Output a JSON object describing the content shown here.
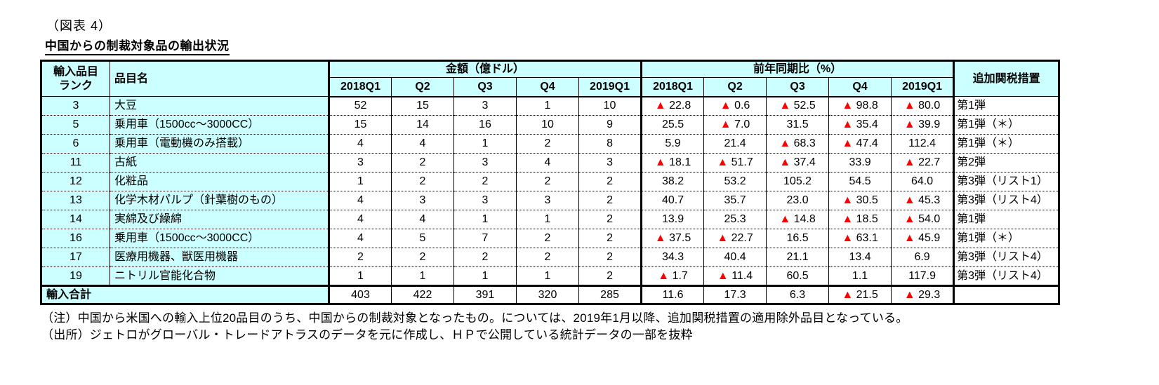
{
  "page": {
    "figure_label": "（図表 4）",
    "title": "中国からの制裁対象品の輸出状況",
    "notes": [
      "（注）中国から米国への輸入上位20品目のうち、中国からの制裁対象となったもの。については、2019年1月以降、追加関税措置の適用除外品目となっている。",
      "（出所）ジェトロがグローバル・トレードアトラスのデータを元に作成し、ＨＰで公開している統計データの一部を抜粋"
    ]
  },
  "colors": {
    "header_bg": "#ccffff",
    "negative_triangle": "#ff0000",
    "border": "#000000"
  },
  "table": {
    "headers": {
      "rank_line1": "輸入品目",
      "rank_line2": "ランク",
      "item_name": "品目名",
      "amount_group": "金額（億ドル）",
      "yoy_group": "前年同期比（%）",
      "tariff": "追加関税措置",
      "quarters": [
        "2018Q1",
        "Q2",
        "Q3",
        "Q4",
        "2019Q1"
      ]
    },
    "rows": [
      {
        "rank": "3",
        "name": "大豆",
        "amounts": [
          "52",
          "15",
          "3",
          "1",
          "10"
        ],
        "yoy": [
          "▲ 22.8",
          "▲ 0.6",
          "▲ 52.5",
          "▲ 98.8",
          "▲ 80.0"
        ],
        "tariff": "第1弾"
      },
      {
        "rank": "5",
        "name": "乗用車（1500cc～3000CC）",
        "amounts": [
          "15",
          "14",
          "16",
          "10",
          "9"
        ],
        "yoy": [
          "25.5",
          "▲ 7.0",
          "31.5",
          "▲ 35.4",
          "▲ 39.9"
        ],
        "tariff": "第1弾（＊）"
      },
      {
        "rank": "6",
        "name": "乗用車（電動機のみ搭載）",
        "amounts": [
          "4",
          "4",
          "1",
          "2",
          "8"
        ],
        "yoy": [
          "5.9",
          "21.4",
          "▲ 68.3",
          "▲ 47.4",
          "112.4"
        ],
        "tariff": "第1弾（＊）"
      },
      {
        "rank": "11",
        "name": "古紙",
        "amounts": [
          "3",
          "2",
          "3",
          "4",
          "3"
        ],
        "yoy": [
          "▲ 18.1",
          "▲ 51.7",
          "▲ 37.4",
          "33.9",
          "▲ 22.7"
        ],
        "tariff": "第2弾"
      },
      {
        "rank": "12",
        "name": "化粧品",
        "amounts": [
          "1",
          "2",
          "2",
          "2",
          "2"
        ],
        "yoy": [
          "38.2",
          "53.2",
          "105.2",
          "54.5",
          "64.0"
        ],
        "tariff": "第3弾（リスト1）"
      },
      {
        "rank": "13",
        "name": "化学木材パルプ（針葉樹のもの）",
        "amounts": [
          "4",
          "3",
          "3",
          "3",
          "2"
        ],
        "yoy": [
          "40.7",
          "35.7",
          "23.0",
          "▲ 30.5",
          "▲ 45.3"
        ],
        "tariff": "第3弾（リスト4）"
      },
      {
        "rank": "14",
        "name": "実綿及び繰綿",
        "amounts": [
          "4",
          "4",
          "1",
          "1",
          "2"
        ],
        "yoy": [
          "13.9",
          "25.3",
          "▲ 14.8",
          "▲ 18.5",
          "▲ 54.0"
        ],
        "tariff": "第1弾"
      },
      {
        "rank": "16",
        "name": "乗用車（1500cc～3000CC）",
        "amounts": [
          "4",
          "5",
          "7",
          "2",
          "2"
        ],
        "yoy": [
          "▲ 37.5",
          "▲ 22.7",
          "16.5",
          "▲ 63.1",
          "▲ 45.9"
        ],
        "tariff": "第1弾（＊）"
      },
      {
        "rank": "17",
        "name": "医療用機器、獣医用機器",
        "amounts": [
          "2",
          "2",
          "2",
          "2",
          "2"
        ],
        "yoy": [
          "34.3",
          "40.4",
          "21.1",
          "13.4",
          "6.9"
        ],
        "tariff": "第3弾（リスト4）"
      },
      {
        "rank": "19",
        "name": "ニトリル官能化合物",
        "amounts": [
          "1",
          "1",
          "1",
          "1",
          "2"
        ],
        "yoy": [
          "▲ 1.7",
          "▲ 11.4",
          "60.5",
          "1.1",
          "117.9"
        ],
        "tariff": "第3弾（リスト4）"
      }
    ],
    "total": {
      "label": "輸入合計",
      "amounts": [
        "403",
        "422",
        "391",
        "320",
        "285"
      ],
      "yoy": [
        "11.6",
        "17.3",
        "6.3",
        "▲ 21.5",
        "▲ 29.3"
      ],
      "tariff": ""
    }
  }
}
